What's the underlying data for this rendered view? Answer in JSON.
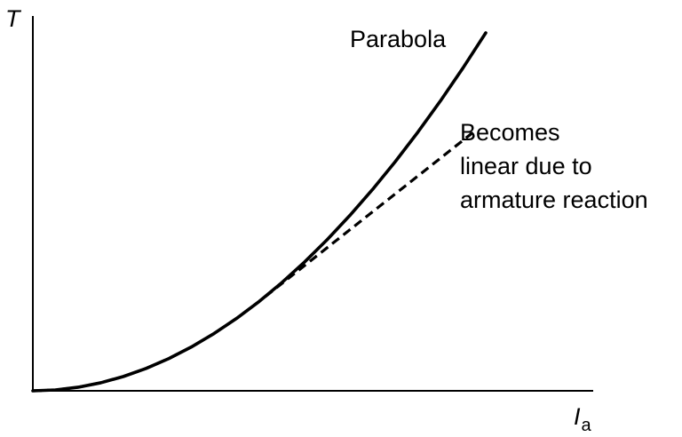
{
  "chart_data": {
    "type": "line",
    "title": "",
    "xlabel": {
      "main": "I",
      "sub": "a"
    },
    "ylabel": "T",
    "xlim": [
      0,
      1
    ],
    "ylim": [
      0,
      1.01
    ],
    "grid": false,
    "axis_ticks": false,
    "series": [
      {
        "label": "Parabola",
        "style": "solid",
        "color": "#000000",
        "x": [
          0,
          0.05,
          0.1,
          0.15,
          0.2,
          0.25,
          0.3,
          0.35,
          0.4,
          0.45,
          0.5,
          0.55,
          0.6,
          0.65,
          0.7,
          0.75,
          0.8,
          0.85,
          0.9,
          0.95,
          1.0
        ],
        "y": [
          0,
          0.0025,
          0.01,
          0.0225,
          0.04,
          0.0625,
          0.09,
          0.1225,
          0.16,
          0.2025,
          0.25,
          0.3025,
          0.36,
          0.4225,
          0.49,
          0.5625,
          0.64,
          0.7225,
          0.81,
          0.9025,
          1.0
        ]
      },
      {
        "label": "Becomes linear due to armature reaction",
        "label_lines": [
          "Becomes",
          "linear due to",
          "armature reaction"
        ],
        "style": "dashed",
        "color": "#000000",
        "x": [
          0,
          0.05,
          0.1,
          0.15,
          0.2,
          0.25,
          0.3,
          0.35,
          0.4,
          0.45,
          0.5,
          0.55,
          0.6,
          0.65,
          0.7,
          0.75,
          0.8,
          0.85,
          0.9,
          0.95,
          0.98
        ],
        "y": [
          0,
          0.0025,
          0.01,
          0.0225,
          0.04,
          0.0625,
          0.09,
          0.1225,
          0.16,
          0.2025,
          0.25,
          0.3,
          0.35,
          0.4,
          0.45,
          0.5,
          0.55,
          0.6,
          0.65,
          0.7,
          0.73
        ]
      }
    ]
  }
}
